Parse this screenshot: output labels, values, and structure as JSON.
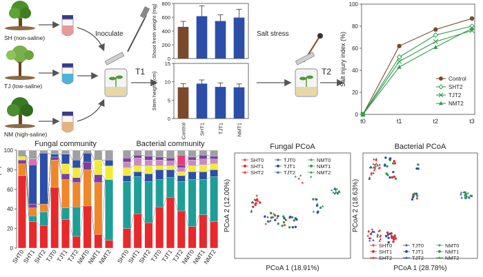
{
  "sites": [
    {
      "label": "SH (non-saline)",
      "tube": "#e79a9a"
    },
    {
      "label": "TJ (low-saline)",
      "tube": "#4fb3d9"
    },
    {
      "label": "NM (high-saline)",
      "tube": "#e6b183"
    }
  ],
  "steps": {
    "inoculate": "Inoculate",
    "t1": "T1",
    "salt": "Salt stress",
    "t2": "T2"
  },
  "chart_data": [
    {
      "type": "bar",
      "ylabel": "Shoot fresh weight (mg)",
      "categories": [
        "Control",
        "SHT1",
        "TJT1",
        "NMT1"
      ],
      "values": [
        460,
        615,
        545,
        595
      ],
      "errors": [
        80,
        150,
        90,
        120
      ],
      "ylim": [
        0,
        800
      ],
      "yticks": [
        "0",
        "200",
        "400",
        "600",
        "800"
      ],
      "colors": [
        "#7a4a2a",
        "#2b4fa8",
        "#2b4fa8",
        "#2b4fa8"
      ]
    },
    {
      "type": "bar",
      "ylabel": "Stem height (cm)",
      "categories": [
        "Control",
        "SHT1",
        "TJT1",
        "NMT1"
      ],
      "values": [
        8.5,
        9.5,
        8.6,
        8.5
      ],
      "errors": [
        1.0,
        1.0,
        1.1,
        0.9
      ],
      "ylim": [
        0,
        15
      ],
      "yticks": [
        "0",
        "5",
        "10",
        "15"
      ],
      "colors": [
        "#7a4a2a",
        "#2b4fa8",
        "#2b4fa8",
        "#2b4fa8"
      ]
    },
    {
      "type": "line",
      "ylabel": "Salt injury index (%)",
      "categories": [
        "t0",
        "t1",
        "t2",
        "t3"
      ],
      "ylim": [
        0,
        100
      ],
      "yticks": [
        "0",
        "20",
        "40",
        "60",
        "80",
        "100"
      ],
      "series": [
        {
          "name": "Control",
          "values": [
            0,
            62,
            77,
            87
          ],
          "color": "#7a4a2a",
          "marker": "circle"
        },
        {
          "name": "SHT2",
          "values": [
            0,
            52,
            72,
            80
          ],
          "color": "#2e9a4a",
          "marker": "diamond"
        },
        {
          "name": "TJT2",
          "values": [
            0,
            48,
            66,
            76
          ],
          "color": "#2e9a4a",
          "marker": "x"
        },
        {
          "name": "NMT2",
          "values": [
            0,
            43,
            61,
            78
          ],
          "color": "#2e9a4a",
          "marker": "triangle"
        }
      ]
    },
    {
      "type": "bar",
      "title": "Fungal community",
      "ylabel": "Relative abundance (%)",
      "categories": [
        "SHT0",
        "SHT1",
        "SHT2",
        "TJT0",
        "TJT1",
        "TJT2",
        "NMT0",
        "NMT1",
        "NMT2"
      ],
      "ylim": [
        0,
        100
      ],
      "yticks": [
        "0",
        "20",
        "40",
        "60",
        "80",
        "100"
      ],
      "colors": [
        "#e8282b",
        "#1e9e97",
        "#f0872a",
        "#7b3fa0",
        "#f2ea3b",
        "#2b4fa8",
        "#e86aa8",
        "#a0a0a0"
      ],
      "stacks": [
        [
          74,
          0,
          12,
          4,
          4,
          1,
          0,
          5
        ],
        [
          27,
          6,
          8,
          4,
          0,
          40,
          6,
          9
        ],
        [
          23,
          14,
          8,
          0,
          0,
          52,
          0,
          3
        ],
        [
          62,
          0,
          28,
          3,
          0,
          3,
          0,
          4
        ],
        [
          29,
          12,
          29,
          6,
          10,
          10,
          0,
          4
        ],
        [
          12,
          30,
          25,
          5,
          10,
          8,
          0,
          10
        ],
        [
          43,
          0,
          37,
          8,
          0,
          9,
          0,
          3
        ],
        [
          14,
          0,
          53,
          8,
          15,
          0,
          0,
          10
        ],
        [
          8,
          62,
          0,
          0,
          14,
          6,
          0,
          10
        ]
      ]
    },
    {
      "type": "bar",
      "title": "Bacterial community",
      "categories": [
        "SHT0",
        "SHT1",
        "SHT2",
        "TJT0",
        "TJT1",
        "TJT2",
        "NMT0",
        "NMT1",
        "NMT2"
      ],
      "ylim": [
        0,
        100
      ],
      "colors": [
        "#e8282b",
        "#1e9e97",
        "#2b4fa8",
        "#f2ea3b",
        "#c98bbf",
        "#7b3fa0",
        "#e8387a",
        "#a0a0a0"
      ],
      "stacks": [
        [
          20,
          48,
          6,
          8,
          6,
          4,
          0,
          8
        ],
        [
          35,
          38,
          5,
          6,
          8,
          3,
          0,
          5
        ],
        [
          26,
          42,
          8,
          8,
          6,
          4,
          0,
          6
        ],
        [
          42,
          28,
          10,
          4,
          6,
          3,
          0,
          7
        ],
        [
          52,
          20,
          8,
          4,
          5,
          3,
          0,
          8
        ],
        [
          38,
          30,
          6,
          4,
          4,
          3,
          10,
          5
        ],
        [
          22,
          48,
          8,
          6,
          6,
          3,
          0,
          7
        ],
        [
          34,
          36,
          8,
          7,
          6,
          4,
          0,
          5
        ],
        [
          27,
          46,
          7,
          6,
          5,
          3,
          0,
          6
        ]
      ]
    },
    {
      "type": "scatter",
      "title": "Fungal PCoA",
      "xlabel": "PCoA 1 (18.91%)",
      "ylabel": "PCoA 2 (12.00%)",
      "legend": [
        "SHT0",
        "TJT0",
        "NMT0",
        "SHT1",
        "TJT1",
        "NMT1",
        "SHT2",
        "TJT2",
        "NMT2"
      ]
    },
    {
      "type": "scatter",
      "title": "Bacterial PCoA",
      "xlabel": "PCoA 1 (28.78%)",
      "ylabel": "PCoA 2 (18.63%)",
      "legend": [
        "SHT0",
        "TJT0",
        "NMT0",
        "SHT1",
        "TJT1",
        "NMT1",
        "SHT2",
        "TJT2",
        "NMT2"
      ]
    }
  ]
}
